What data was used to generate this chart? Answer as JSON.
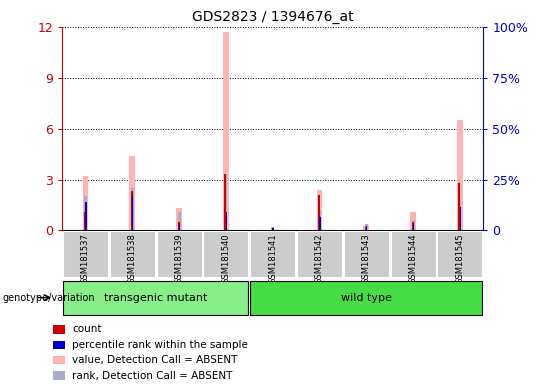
{
  "title": "GDS2823 / 1394676_at",
  "samples": [
    "GSM181537",
    "GSM181538",
    "GSM181539",
    "GSM181540",
    "GSM181541",
    "GSM181542",
    "GSM181543",
    "GSM181544",
    "GSM181545"
  ],
  "groups": [
    "transgenic mutant",
    "transgenic mutant",
    "transgenic mutant",
    "transgenic mutant",
    "wild type",
    "wild type",
    "wild type",
    "wild type",
    "wild type"
  ],
  "absent_value": [
    3.2,
    4.4,
    1.3,
    11.7,
    0.0,
    2.4,
    0.3,
    1.1,
    6.5
  ],
  "absent_rank": [
    2.0,
    2.5,
    1.1,
    3.3,
    0.2,
    1.2,
    0.35,
    0.6,
    1.8
  ],
  "count_value": [
    1.1,
    2.3,
    0.5,
    3.3,
    0.05,
    2.1,
    0.2,
    0.5,
    2.8
  ],
  "rank_value": [
    1.7,
    2.0,
    0.4,
    1.1,
    0.15,
    0.8,
    0.25,
    0.4,
    1.4
  ],
  "ylim_left": [
    0,
    12
  ],
  "yticks_left": [
    0,
    3,
    6,
    9,
    12
  ],
  "ylim_right": [
    0,
    100
  ],
  "yticks_right": [
    0,
    25,
    50,
    75,
    100
  ],
  "left_color": "#cc0000",
  "right_color": "#0000cc",
  "pink_color": "#ffb3b3",
  "lightblue_color": "#aaaacc",
  "darkred_color": "#cc0000",
  "darkblue_color": "#0000cc",
  "group_colors": {
    "transgenic mutant": "#88ee88",
    "wild type": "#44dd44"
  },
  "group_label": "genotype/variation",
  "legend": [
    {
      "label": "count",
      "color": "#cc0000"
    },
    {
      "label": "percentile rank within the sample",
      "color": "#0000cc"
    },
    {
      "label": "value, Detection Call = ABSENT",
      "color": "#ffb3b3"
    },
    {
      "label": "rank, Detection Call = ABSENT",
      "color": "#aaaacc"
    }
  ],
  "sample_bg": "#cccccc",
  "axes_bg": "#ffffff",
  "pink_bar_width": 0.12,
  "lightblue_bar_width": 0.06,
  "red_bar_width": 0.04,
  "blue_bar_width": 0.03
}
